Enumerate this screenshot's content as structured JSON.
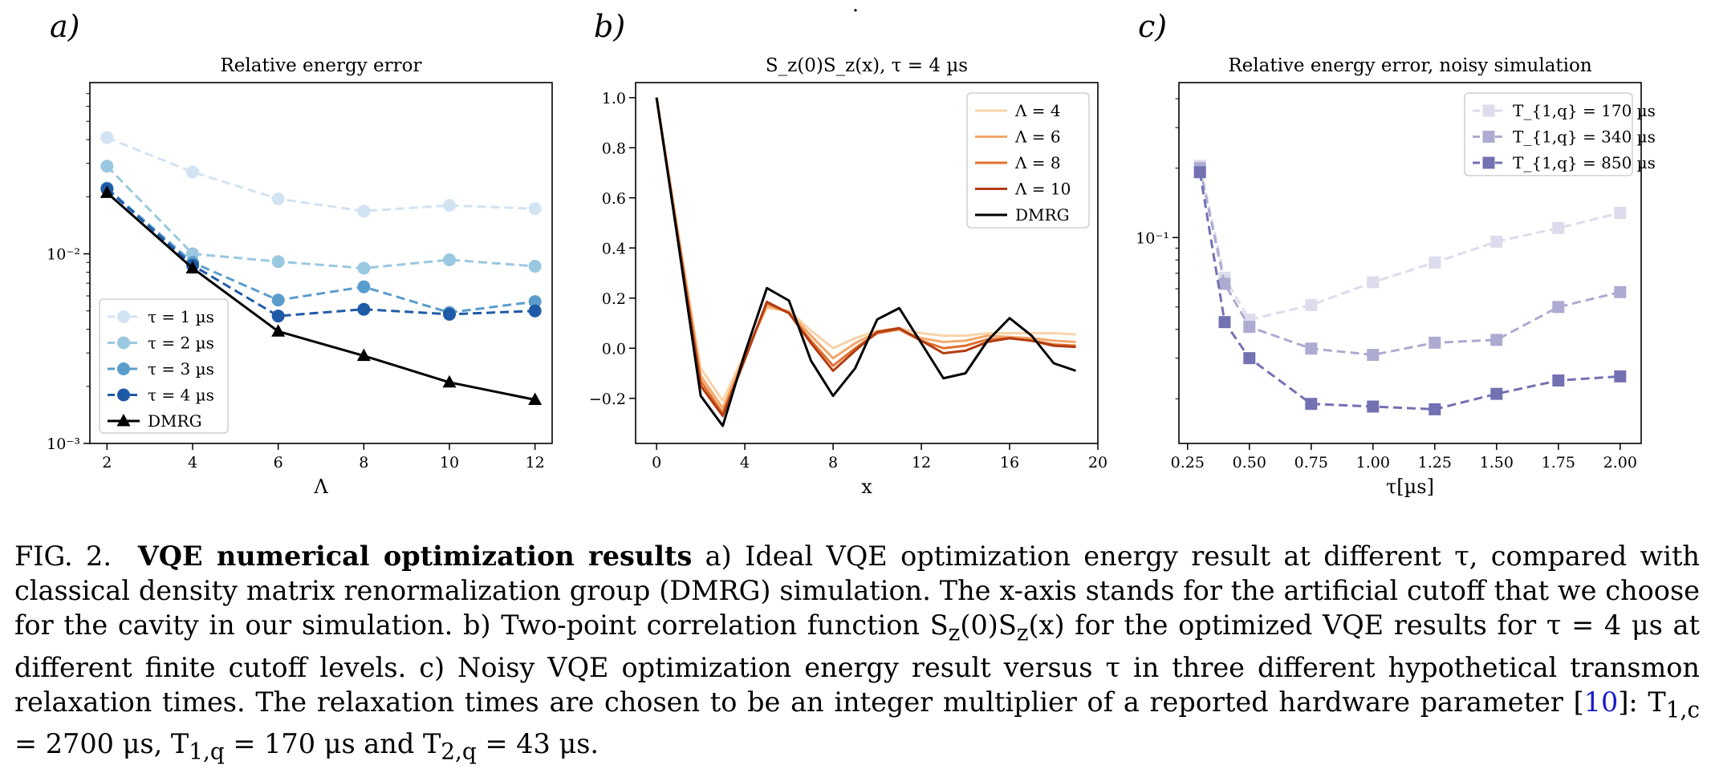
{
  "figure": {
    "panel_letters": [
      "a)",
      "b)",
      "c)"
    ],
    "top_mark": "."
  },
  "chart_data": [
    {
      "type": "line",
      "panel": "a)",
      "title": "Relative energy error",
      "xlabel": "Λ",
      "ylabel": "",
      "yscale": "log",
      "xlim": [
        1.6,
        12.4
      ],
      "ylim": [
        0.001,
        0.08
      ],
      "x_ticks": [
        2,
        4,
        6,
        8,
        10,
        12
      ],
      "x_tick_labels": [
        "2",
        "4",
        "6",
        "8",
        "10",
        "12"
      ],
      "y_ticks": [
        0.001,
        0.01
      ],
      "y_tick_labels": [
        "10⁻³",
        "10⁻²"
      ],
      "grid": false,
      "legend": "lower-left",
      "x": [
        2,
        4,
        6,
        8,
        10,
        12
      ],
      "series": [
        {
          "name": "τ = 1 µs",
          "values": [
            0.041,
            0.027,
            0.0195,
            0.0168,
            0.018,
            0.0173
          ],
          "color": "#d2e3f2",
          "style": "dashed",
          "marker": "circle"
        },
        {
          "name": "τ = 2 µs",
          "values": [
            0.029,
            0.01,
            0.0091,
            0.0084,
            0.0093,
            0.0086
          ],
          "color": "#9ac8e0",
          "style": "dashed",
          "marker": "circle"
        },
        {
          "name": "τ = 3 µs",
          "values": [
            0.0222,
            0.009,
            0.0057,
            0.0067,
            0.0049,
            0.0056
          ],
          "color": "#5a9dcd",
          "style": "dashed",
          "marker": "circle"
        },
        {
          "name": "τ = 4 µs",
          "values": [
            0.022,
            0.0087,
            0.0047,
            0.0051,
            0.0048,
            0.005
          ],
          "color": "#1f5aa6",
          "style": "dashed",
          "marker": "circle"
        },
        {
          "name": "DMRG",
          "values": [
            0.021,
            0.0084,
            0.0039,
            0.0029,
            0.0021,
            0.0017
          ],
          "color": "#000000",
          "style": "solid",
          "marker": "triangle"
        }
      ]
    },
    {
      "type": "line",
      "panel": "b)",
      "title": "S_z(0)S_z(x), τ = 4 µs",
      "xlabel": "x",
      "ylabel": "",
      "xlim": [
        -0.95,
        20
      ],
      "ylim": [
        -0.38,
        1.06
      ],
      "x_ticks": [
        0,
        4,
        8,
        12,
        16,
        20
      ],
      "x_tick_labels": [
        "0",
        "4",
        "8",
        "12",
        "16",
        "20"
      ],
      "y_ticks": [
        -0.2,
        0,
        0.2,
        0.4,
        0.6,
        0.8,
        1.0
      ],
      "y_tick_labels": [
        "−0.2",
        "0.0",
        "0.2",
        "0.4",
        "0.6",
        "0.8",
        "1.0"
      ],
      "grid": false,
      "legend": "top-right",
      "x": [
        0,
        1,
        2,
        3,
        4,
        5,
        6,
        7,
        8,
        9,
        10,
        11,
        12,
        13,
        14,
        15,
        16,
        17,
        18,
        19
      ],
      "series": [
        {
          "name": "Λ = 4",
          "values": [
            1.0,
            0.45,
            -0.08,
            -0.21,
            -0.02,
            0.16,
            0.15,
            0.07,
            0.0,
            0.04,
            0.07,
            0.08,
            0.06,
            0.05,
            0.05,
            0.06,
            0.06,
            0.06,
            0.06,
            0.055
          ],
          "color": "#f8d3a9"
        },
        {
          "name": "Λ = 6",
          "values": [
            1.0,
            0.44,
            -0.11,
            -0.24,
            -0.03,
            0.17,
            0.145,
            0.05,
            -0.04,
            0.02,
            0.065,
            0.075,
            0.04,
            0.025,
            0.03,
            0.05,
            0.045,
            0.04,
            0.03,
            0.025
          ],
          "color": "#f3a769"
        },
        {
          "name": "Λ = 8",
          "values": [
            1.0,
            0.43,
            -0.13,
            -0.26,
            -0.04,
            0.18,
            0.14,
            0.03,
            -0.07,
            0.0,
            0.06,
            0.075,
            0.03,
            0.0,
            0.01,
            0.035,
            0.04,
            0.03,
            0.015,
            0.01
          ],
          "color": "#e0702e"
        },
        {
          "name": "Λ = 10",
          "values": [
            1.0,
            0.42,
            -0.15,
            -0.27,
            -0.045,
            0.185,
            0.14,
            0.02,
            -0.09,
            -0.01,
            0.065,
            0.08,
            0.03,
            -0.02,
            -0.01,
            0.025,
            0.04,
            0.03,
            0.01,
            0.005
          ],
          "color": "#b23c12"
        },
        {
          "name": "DMRG",
          "values": [
            1.0,
            0.41,
            -0.19,
            -0.31,
            -0.02,
            0.24,
            0.19,
            -0.05,
            -0.19,
            -0.08,
            0.115,
            0.16,
            0.02,
            -0.12,
            -0.1,
            0.03,
            0.12,
            0.05,
            -0.06,
            -0.09
          ],
          "color": "#000000"
        }
      ]
    },
    {
      "type": "line",
      "panel": "c)",
      "title": "Relative energy error, noisy simulation",
      "xlabel": "τ[µs]",
      "ylabel": "",
      "yscale": "log",
      "xlim": [
        0.215,
        2.085
      ],
      "ylim": [
        0.0128,
        0.47
      ],
      "x_ticks": [
        0.25,
        0.5,
        0.75,
        1.0,
        1.25,
        1.5,
        1.75,
        2.0
      ],
      "x_tick_labels": [
        "0.25",
        "0.50",
        "0.75",
        "1.00",
        "1.25",
        "1.50",
        "1.75",
        "2.00"
      ],
      "y_ticks": [
        0.1
      ],
      "y_tick_labels": [
        "10⁻¹"
      ],
      "grid": false,
      "legend": "top-right",
      "x": [
        0.3,
        0.4,
        0.5,
        0.75,
        1.0,
        1.25,
        1.5,
        1.75,
        2.0
      ],
      "series": [
        {
          "name": "T_{1,q} = 170 µs",
          "values": [
            0.205,
            0.067,
            0.044,
            0.051,
            0.064,
            0.078,
            0.096,
            0.11,
            0.128
          ],
          "color": "#dcdcec",
          "style": "dashed",
          "marker": "square"
        },
        {
          "name": "T_{1,q} = 340 µs",
          "values": [
            0.2,
            0.063,
            0.041,
            0.033,
            0.031,
            0.035,
            0.036,
            0.05,
            0.058
          ],
          "color": "#adabd1",
          "style": "dashed",
          "marker": "square"
        },
        {
          "name": "T_{1,q} = 850 µs",
          "values": [
            0.192,
            0.043,
            0.03,
            0.019,
            0.0185,
            0.018,
            0.021,
            0.024,
            0.025
          ],
          "color": "#7371b2",
          "style": "dashed",
          "marker": "square"
        }
      ]
    }
  ],
  "caption": {
    "label": "FIG. 2.",
    "heading": "VQE numerical optimization results",
    "body_1": " a) Ideal VQE optimization energy result at different τ, compared with classical density matrix renormalization group (DMRG) simulation. The x-axis stands for the artificial cutoff that we choose for the cavity in our simulation. b) Two-point correlation function S",
    "sub_1": "z",
    "body_2": "(0)S",
    "sub_2": "z",
    "body_3": "(x) for the optimized VQE results for τ = 4 μs at different finite cutoff levels. c) Noisy VQE optimization energy result versus τ in three different hypothetical transmon relaxation times. The relaxation times are chosen to be an integer multiplier of a reported hardware parameter [",
    "ref": "10",
    "body_4": "]: T",
    "sub_3": "1,c",
    "body_5": " = 2700 μs, T",
    "sub_4": "1,q",
    "body_6": " = 170 μs and T",
    "sub_5": "2,q",
    "body_7": " = 43 μs."
  }
}
